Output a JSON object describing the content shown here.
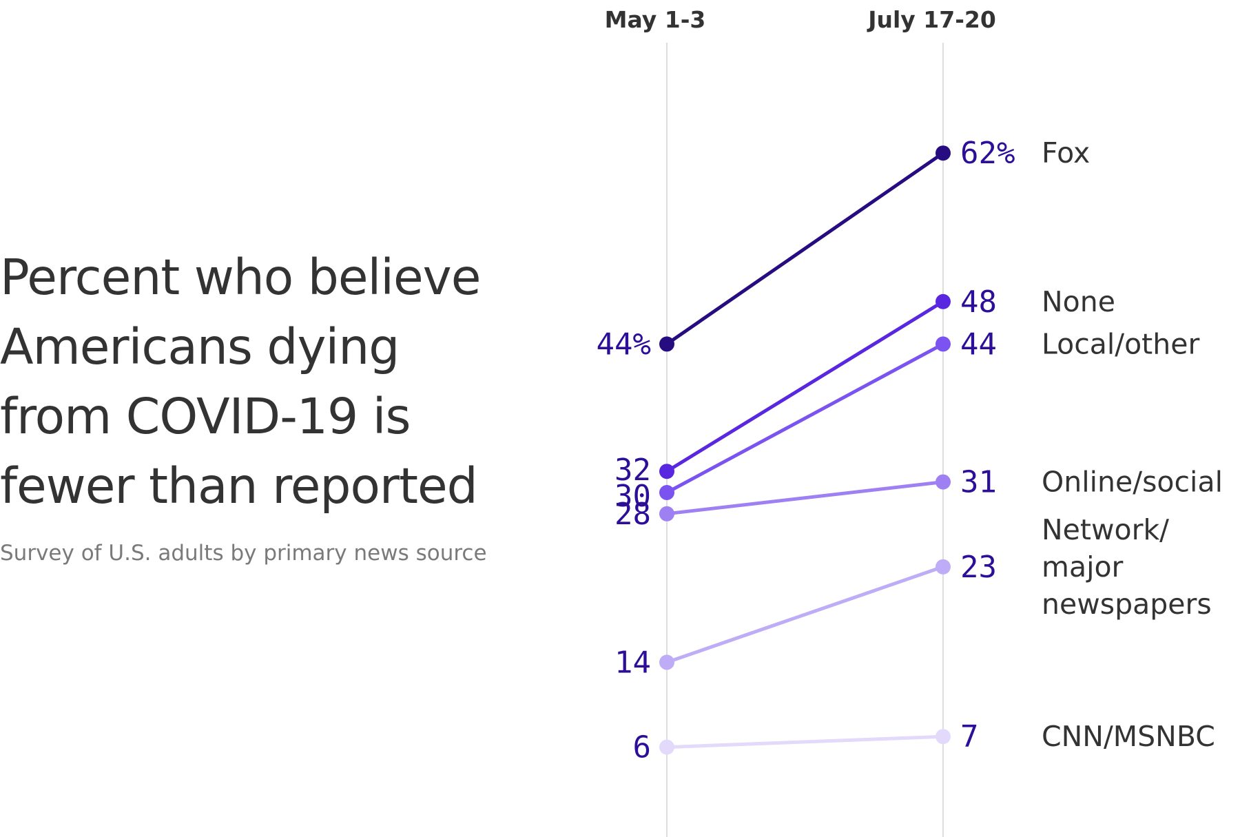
{
  "title": "Percent who believe Americans dying from COVID-19 is fewer than reported",
  "subtitle": "Survey of U.S. adults by primary news source",
  "chart_data": {
    "type": "line",
    "x": [
      "May 1-3",
      "July 17-20"
    ],
    "y_unit": "%",
    "series": [
      {
        "name": "Fox",
        "values": [
          44,
          62
        ],
        "value_labels": [
          "44%",
          "62%"
        ],
        "color": "#260c80"
      },
      {
        "name": "None",
        "values": [
          32,
          48
        ],
        "value_labels": [
          "32",
          "48"
        ],
        "color": "#5a27e0"
      },
      {
        "name": "Local/other",
        "values": [
          30,
          44
        ],
        "value_labels": [
          "30",
          "44"
        ],
        "color": "#7b53f0"
      },
      {
        "name": "Online/social",
        "values": [
          28,
          31
        ],
        "value_labels": [
          "28",
          "31"
        ],
        "color": "#9e80f2"
      },
      {
        "name": "Network/ major newspapers",
        "label_lines": [
          "Network/",
          "major",
          "newspapers"
        ],
        "values": [
          14,
          23
        ],
        "value_labels": [
          "14",
          "23"
        ],
        "color": "#bfacf7"
      },
      {
        "name": "CNN/MSNBC",
        "values": [
          6,
          7
        ],
        "value_labels": [
          "6",
          "7"
        ],
        "color": "#e3d9fb"
      }
    ]
  }
}
